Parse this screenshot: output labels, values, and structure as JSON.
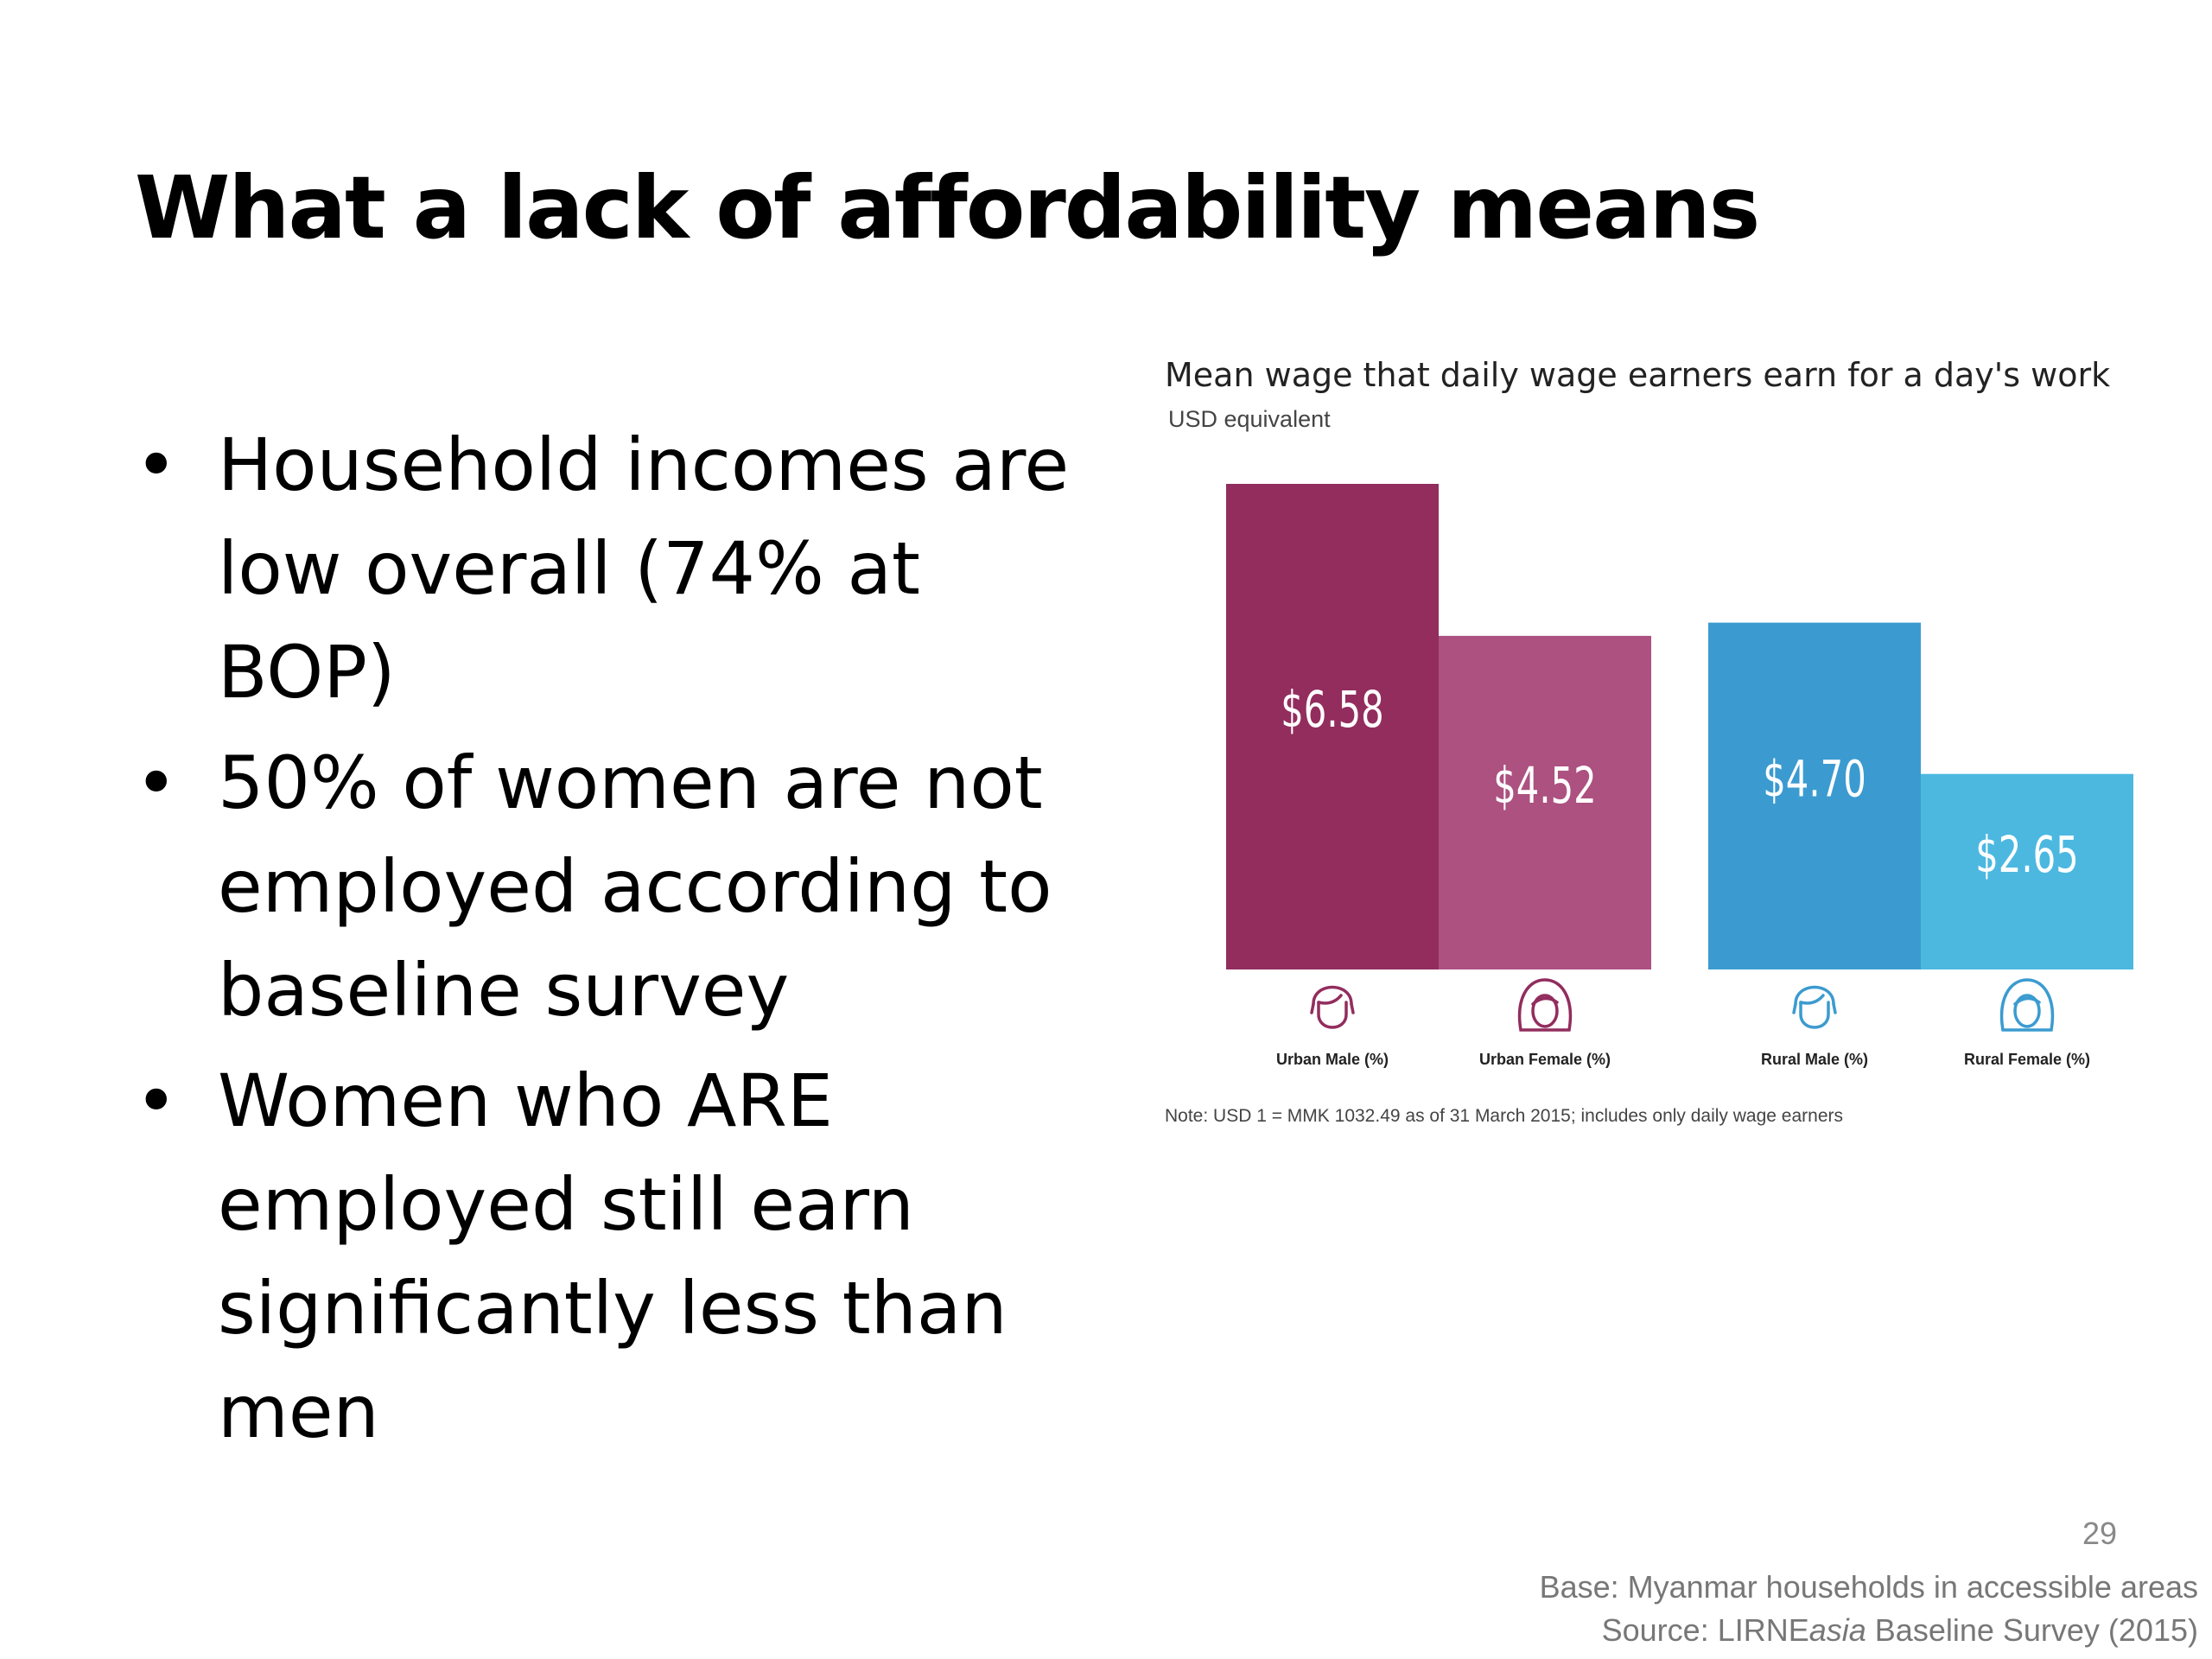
{
  "slide": {
    "title": "What a lack of affordability means",
    "bullets": [
      "Household incomes are low overall (74% at BOP)",
      "50% of women are not employed according to baseline survey",
      "Women who ARE employed still  earn significantly less than men"
    ],
    "bullet_glyph": "•",
    "page_number": "29",
    "base": "Base: Myanmar households in accessible areas",
    "source_prefix": "Source: LIRNE",
    "source_italic": "asia",
    "source_suffix": " Baseline Survey (2015)"
  },
  "chart_data": {
    "type": "bar",
    "title": "Mean wage that daily wage earners earn for a day's work",
    "subtitle": "USD equivalent",
    "categories": [
      "Urban Male (%)",
      "Urban Female (%)",
      "Rural Male (%)",
      "Rural Female (%)"
    ],
    "values": [
      6.58,
      4.52,
      4.7,
      2.65
    ],
    "value_labels": [
      "$6.58",
      "$4.52",
      "$4.70",
      "$2.65"
    ],
    "icons": [
      "male-face-icon",
      "female-face-icon",
      "male-face-icon",
      "female-face-icon"
    ],
    "colors": [
      "#922d5e",
      "#ac5180",
      "#3b9bd0",
      "#4cb8e0"
    ],
    "icon_colors": [
      "#922d5e",
      "#922d5e",
      "#3b9bd0",
      "#3b9bd0"
    ],
    "ylim": [
      0,
      6.58
    ],
    "grid": false,
    "legend": "none",
    "note": "Note: USD 1 = MMK 1032.49 as of 31 March 2015; includes only daily wage earners"
  }
}
